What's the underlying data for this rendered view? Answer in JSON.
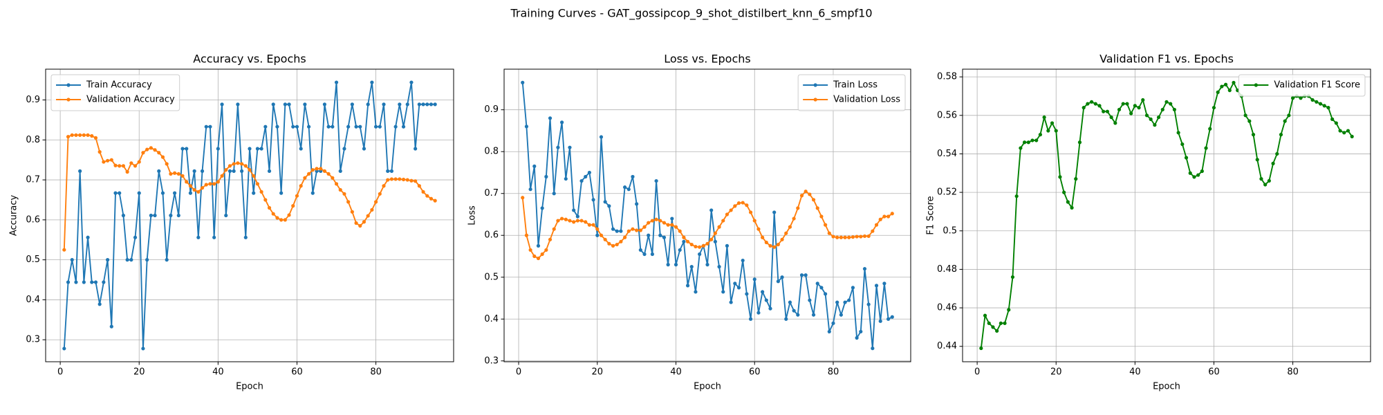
{
  "title": "Training Curves - GAT_gossipcop_9_shot_distilbert_knn_6_smpf10",
  "chart_data": [
    {
      "type": "line",
      "title": "Accuracy vs. Epochs",
      "xlabel": "Epoch",
      "ylabel": "Accuracy",
      "x": [
        1,
        2,
        3,
        4,
        5,
        6,
        7,
        8,
        9,
        10,
        11,
        12,
        13,
        14,
        15,
        16,
        17,
        18,
        19,
        20,
        21,
        22,
        23,
        24,
        25,
        26,
        27,
        28,
        29,
        30,
        31,
        32,
        33,
        34,
        35,
        36,
        37,
        38,
        39,
        40,
        41,
        42,
        43,
        44,
        45,
        46,
        47,
        48,
        49,
        50,
        51,
        52,
        53,
        54,
        55,
        56,
        57,
        58,
        59,
        60,
        61,
        62,
        63,
        64,
        65,
        66,
        67,
        68,
        69,
        70,
        71,
        72,
        73,
        74,
        75,
        76,
        77,
        78,
        79,
        80,
        81,
        82,
        83,
        84,
        85,
        86,
        87,
        88,
        89,
        90,
        91,
        92,
        93,
        94,
        95
      ],
      "xlim": [
        -3.7,
        99.7
      ],
      "xticks": [
        0,
        20,
        40,
        60,
        80
      ],
      "ylim": [
        0.245,
        0.977
      ],
      "yticks": [
        0.3,
        0.4,
        0.5,
        0.6,
        0.7,
        0.8,
        0.9
      ],
      "grid": true,
      "legend": "upper left",
      "series": [
        {
          "name": "Train Accuracy",
          "color": "#1f77b4",
          "values": [
            0.278,
            0.444,
            0.5,
            0.444,
            0.722,
            0.444,
            0.556,
            0.444,
            0.444,
            0.389,
            0.444,
            0.5,
            0.333,
            0.667,
            0.667,
            0.611,
            0.5,
            0.5,
            0.556,
            0.667,
            0.278,
            0.5,
            0.611,
            0.611,
            0.722,
            0.667,
            0.5,
            0.611,
            0.667,
            0.611,
            0.778,
            0.778,
            0.667,
            0.722,
            0.556,
            0.722,
            0.833,
            0.833,
            0.556,
            0.778,
            0.889,
            0.611,
            0.722,
            0.722,
            0.889,
            0.722,
            0.556,
            0.778,
            0.667,
            0.778,
            0.778,
            0.833,
            0.722,
            0.889,
            0.833,
            0.667,
            0.889,
            0.889,
            0.833,
            0.833,
            0.778,
            0.889,
            0.833,
            0.667,
            0.722,
            0.722,
            0.889,
            0.833,
            0.833,
            0.944,
            0.722,
            0.778,
            0.833,
            0.889,
            0.833,
            0.833,
            0.778,
            0.889,
            0.944,
            0.833,
            0.833,
            0.889,
            0.722,
            0.722,
            0.833,
            0.889,
            0.833,
            0.889,
            0.944,
            0.778,
            0.889,
            0.889,
            0.889,
            0.889,
            0.889
          ]
        },
        {
          "name": "Validation Accuracy",
          "color": "#ff7f0e",
          "values": [
            0.525,
            0.808,
            0.812,
            0.812,
            0.812,
            0.812,
            0.812,
            0.81,
            0.805,
            0.77,
            0.745,
            0.748,
            0.75,
            0.736,
            0.735,
            0.735,
            0.72,
            0.742,
            0.735,
            0.745,
            0.768,
            0.776,
            0.78,
            0.775,
            0.768,
            0.757,
            0.74,
            0.715,
            0.717,
            0.715,
            0.71,
            0.695,
            0.685,
            0.675,
            0.67,
            0.68,
            0.688,
            0.69,
            0.69,
            0.695,
            0.71,
            0.725,
            0.735,
            0.74,
            0.742,
            0.74,
            0.735,
            0.725,
            0.71,
            0.69,
            0.67,
            0.65,
            0.63,
            0.615,
            0.605,
            0.6,
            0.6,
            0.612,
            0.635,
            0.66,
            0.685,
            0.705,
            0.715,
            0.725,
            0.728,
            0.728,
            0.722,
            0.715,
            0.705,
            0.69,
            0.675,
            0.665,
            0.645,
            0.62,
            0.592,
            0.585,
            0.595,
            0.61,
            0.625,
            0.645,
            0.665,
            0.685,
            0.7,
            0.702,
            0.702,
            0.702,
            0.701,
            0.7,
            0.698,
            0.697,
            0.685,
            0.67,
            0.66,
            0.653,
            0.648
          ]
        }
      ]
    },
    {
      "type": "line",
      "title": "Loss vs. Epochs",
      "xlabel": "Epoch",
      "ylabel": "Loss",
      "x": [
        1,
        2,
        3,
        4,
        5,
        6,
        7,
        8,
        9,
        10,
        11,
        12,
        13,
        14,
        15,
        16,
        17,
        18,
        19,
        20,
        21,
        22,
        23,
        24,
        25,
        26,
        27,
        28,
        29,
        30,
        31,
        32,
        33,
        34,
        35,
        36,
        37,
        38,
        39,
        40,
        41,
        42,
        43,
        44,
        45,
        46,
        47,
        48,
        49,
        50,
        51,
        52,
        53,
        54,
        55,
        56,
        57,
        58,
        59,
        60,
        61,
        62,
        63,
        64,
        65,
        66,
        67,
        68,
        69,
        70,
        71,
        72,
        73,
        74,
        75,
        76,
        77,
        78,
        79,
        80,
        81,
        82,
        83,
        84,
        85,
        86,
        87,
        88,
        89,
        90,
        91,
        92,
        93,
        94,
        95
      ],
      "xlim": [
        -3.7,
        99.7
      ],
      "xticks": [
        0,
        20,
        40,
        60,
        80
      ],
      "ylim": [
        0.298,
        0.997
      ],
      "yticks": [
        0.3,
        0.4,
        0.5,
        0.6,
        0.7,
        0.8,
        0.9
      ],
      "grid": true,
      "legend": "upper right",
      "series": [
        {
          "name": "Train Loss",
          "color": "#1f77b4",
          "values": [
            0.965,
            0.86,
            0.71,
            0.765,
            0.575,
            0.665,
            0.74,
            0.88,
            0.7,
            0.81,
            0.87,
            0.735,
            0.81,
            0.66,
            0.645,
            0.73,
            0.74,
            0.75,
            0.685,
            0.6,
            0.835,
            0.68,
            0.67,
            0.615,
            0.61,
            0.61,
            0.715,
            0.71,
            0.74,
            0.675,
            0.565,
            0.555,
            0.6,
            0.555,
            0.73,
            0.6,
            0.595,
            0.53,
            0.64,
            0.53,
            0.565,
            0.585,
            0.48,
            0.525,
            0.465,
            0.555,
            0.575,
            0.53,
            0.66,
            0.585,
            0.525,
            0.465,
            0.575,
            0.44,
            0.485,
            0.475,
            0.54,
            0.46,
            0.4,
            0.495,
            0.415,
            0.465,
            0.445,
            0.425,
            0.655,
            0.49,
            0.5,
            0.4,
            0.44,
            0.42,
            0.41,
            0.505,
            0.505,
            0.445,
            0.41,
            0.485,
            0.475,
            0.46,
            0.37,
            0.39,
            0.44,
            0.41,
            0.44,
            0.445,
            0.475,
            0.355,
            0.37,
            0.52,
            0.435,
            0.33,
            0.48,
            0.395,
            0.485,
            0.4,
            0.405
          ]
        },
        {
          "name": "Validation Loss",
          "color": "#ff7f0e",
          "values": [
            0.69,
            0.6,
            0.565,
            0.55,
            0.545,
            0.555,
            0.565,
            0.59,
            0.615,
            0.635,
            0.64,
            0.638,
            0.635,
            0.632,
            0.635,
            0.635,
            0.632,
            0.625,
            0.625,
            0.615,
            0.6,
            0.59,
            0.58,
            0.575,
            0.578,
            0.585,
            0.595,
            0.61,
            0.615,
            0.612,
            0.612,
            0.62,
            0.63,
            0.635,
            0.638,
            0.635,
            0.63,
            0.625,
            0.625,
            0.62,
            0.61,
            0.595,
            0.585,
            0.578,
            0.573,
            0.572,
            0.575,
            0.58,
            0.59,
            0.605,
            0.62,
            0.635,
            0.65,
            0.66,
            0.67,
            0.677,
            0.678,
            0.672,
            0.655,
            0.635,
            0.615,
            0.595,
            0.583,
            0.575,
            0.572,
            0.578,
            0.59,
            0.605,
            0.62,
            0.64,
            0.665,
            0.695,
            0.705,
            0.698,
            0.685,
            0.665,
            0.645,
            0.625,
            0.605,
            0.597,
            0.595,
            0.595,
            0.595,
            0.595,
            0.596,
            0.597,
            0.597,
            0.598,
            0.598,
            0.61,
            0.625,
            0.638,
            0.645,
            0.645,
            0.652
          ]
        }
      ]
    },
    {
      "type": "line",
      "title": "Validation F1 vs. Epochs",
      "xlabel": "Epoch",
      "ylabel": "F1 Score",
      "x": [
        1,
        2,
        3,
        4,
        5,
        6,
        7,
        8,
        9,
        10,
        11,
        12,
        13,
        14,
        15,
        16,
        17,
        18,
        19,
        20,
        21,
        22,
        23,
        24,
        25,
        26,
        27,
        28,
        29,
        30,
        31,
        32,
        33,
        34,
        35,
        36,
        37,
        38,
        39,
        40,
        41,
        42,
        43,
        44,
        45,
        46,
        47,
        48,
        49,
        50,
        51,
        52,
        53,
        54,
        55,
        56,
        57,
        58,
        59,
        60,
        61,
        62,
        63,
        64,
        65,
        66,
        67,
        68,
        69,
        70,
        71,
        72,
        73,
        74,
        75,
        76,
        77,
        78,
        79,
        80,
        81,
        82,
        83,
        84,
        85,
        86,
        87,
        88,
        89,
        90,
        91,
        92,
        93,
        94,
        95
      ],
      "xlim": [
        -3.7,
        99.7
      ],
      "xticks": [
        0,
        20,
        40,
        60,
        80
      ],
      "ylim": [
        0.432,
        0.584
      ],
      "yticks": [
        0.44,
        0.46,
        0.48,
        0.5,
        0.52,
        0.54,
        0.56,
        0.58
      ],
      "grid": true,
      "legend": "upper right",
      "series": [
        {
          "name": "Validation F1 Score",
          "color": "#008000",
          "values": [
            0.439,
            0.456,
            0.452,
            0.45,
            0.448,
            0.452,
            0.452,
            0.459,
            0.476,
            0.518,
            0.543,
            0.546,
            0.546,
            0.547,
            0.547,
            0.55,
            0.559,
            0.552,
            0.556,
            0.552,
            0.528,
            0.52,
            0.515,
            0.512,
            0.527,
            0.546,
            0.564,
            0.566,
            0.567,
            0.566,
            0.565,
            0.562,
            0.562,
            0.559,
            0.556,
            0.563,
            0.566,
            0.566,
            0.561,
            0.565,
            0.564,
            0.568,
            0.56,
            0.558,
            0.555,
            0.559,
            0.563,
            0.567,
            0.566,
            0.563,
            0.551,
            0.545,
            0.538,
            0.53,
            0.528,
            0.529,
            0.531,
            0.543,
            0.553,
            0.564,
            0.572,
            0.575,
            0.576,
            0.573,
            0.577,
            0.573,
            0.57,
            0.56,
            0.557,
            0.55,
            0.537,
            0.527,
            0.524,
            0.526,
            0.535,
            0.54,
            0.55,
            0.557,
            0.56,
            0.569,
            0.57,
            0.569,
            0.57,
            0.57,
            0.568,
            0.567,
            0.566,
            0.565,
            0.564,
            0.558,
            0.556,
            0.552,
            0.551,
            0.552,
            0.549
          ]
        }
      ]
    }
  ]
}
